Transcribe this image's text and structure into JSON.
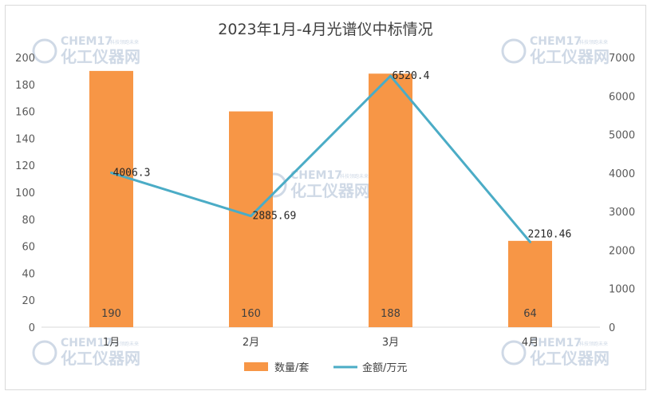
{
  "chart_data": {
    "type": "bar",
    "title": "2023年1月-4月光谱仪中标情况",
    "categories": [
      "1月",
      "2月",
      "3月",
      "4月"
    ],
    "series": [
      {
        "name": "数量/套",
        "type": "bar",
        "axis": "left",
        "values": [
          190,
          160,
          188,
          64
        ],
        "color": "#f79646"
      },
      {
        "name": "金额/万元",
        "type": "line",
        "axis": "right",
        "values": [
          4006.3,
          2885.69,
          6520.4,
          2210.46
        ],
        "labels": [
          "4006.3",
          "2885.69",
          "6520.4",
          "2210.46"
        ],
        "color": "#4bacc6"
      }
    ],
    "y_left": {
      "min": 0,
      "max": 200,
      "step": 20
    },
    "y_right": {
      "min": 0,
      "max": 7000,
      "step": 1000
    },
    "grid": false,
    "legend_position": "bottom"
  },
  "watermark": {
    "brand_en": "CHEM17",
    "brand_cn": "化工仪器网",
    "tagline": "科技领跑未来",
    "color": "#cfd9e6"
  }
}
